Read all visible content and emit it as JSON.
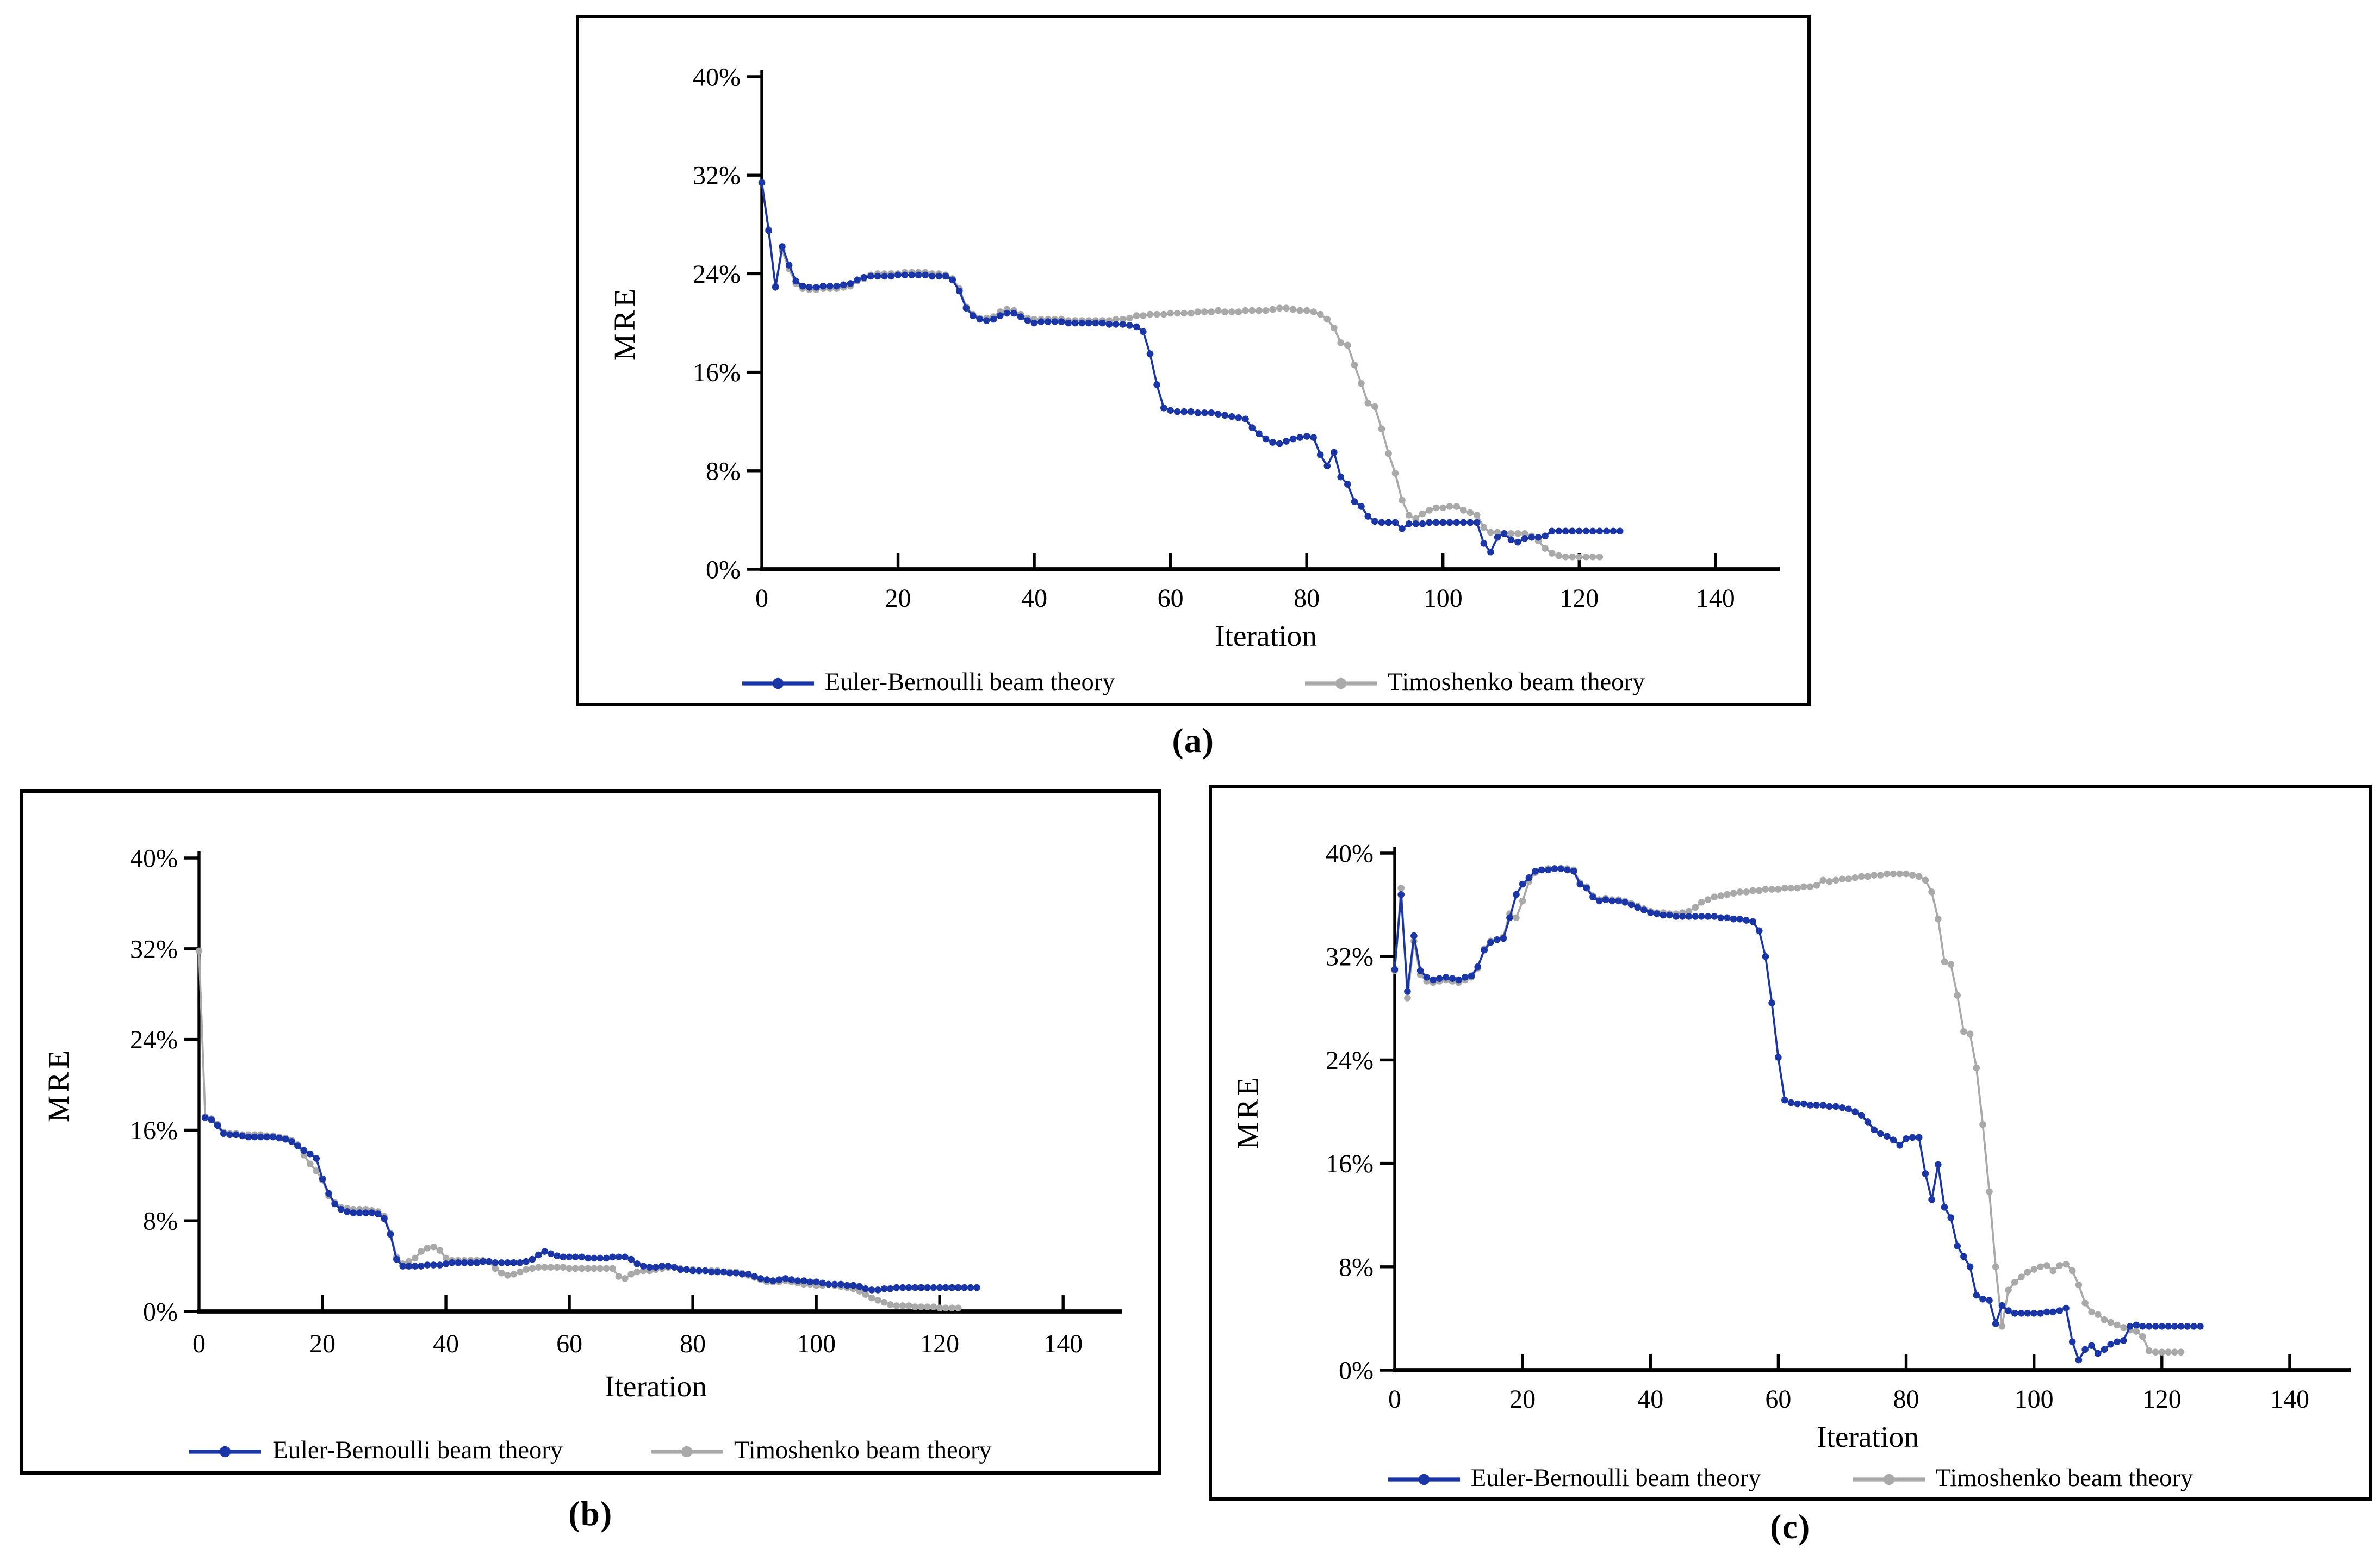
{
  "figure": {
    "type": "three-panel line chart figure",
    "background": "#ffffff",
    "axis_color": "#000000"
  },
  "chart_data": [
    {
      "id": "a",
      "type": "line",
      "caption": "(a)",
      "xlabel": "Iteration",
      "ylabel": "MRE",
      "xlim": [
        0,
        148
      ],
      "ylim": [
        0,
        40
      ],
      "grid": false,
      "legend_position": "bottom",
      "xtick_values": [
        0,
        20,
        40,
        60,
        80,
        100,
        120,
        140
      ],
      "xtick_labels": [
        "0",
        "20",
        "40",
        "60",
        "80",
        "100",
        "120",
        "140"
      ],
      "ytick_values": [
        0,
        8,
        16,
        24,
        32,
        40
      ],
      "ytick_labels": [
        "0%",
        "8%",
        "16%",
        "24%",
        "32%",
        "40%"
      ],
      "x_start": 0,
      "x_step": 1,
      "series": [
        {
          "name": "Euler-Bernoulli beam theory",
          "color": "#1a35a5",
          "marker": "circle",
          "values": [
            31.4,
            27.5,
            22.9,
            26.2,
            24.7,
            23.4,
            23.0,
            22.9,
            22.9,
            23.0,
            23.0,
            23.0,
            23.1,
            23.2,
            23.5,
            23.7,
            23.8,
            23.8,
            23.8,
            23.8,
            23.9,
            23.9,
            23.9,
            23.9,
            23.9,
            23.8,
            23.8,
            23.8,
            23.5,
            22.6,
            21.2,
            20.6,
            20.3,
            20.2,
            20.3,
            20.6,
            20.8,
            20.8,
            20.5,
            20.2,
            20.0,
            20.1,
            20.1,
            20.1,
            20.1,
            20.0,
            20.0,
            20.0,
            20.0,
            20.0,
            20.0,
            19.9,
            19.9,
            19.9,
            19.8,
            19.7,
            19.3,
            17.5,
            15.0,
            13.1,
            12.9,
            12.8,
            12.8,
            12.8,
            12.7,
            12.7,
            12.7,
            12.6,
            12.5,
            12.4,
            12.3,
            12.2,
            11.5,
            11.0,
            10.6,
            10.3,
            10.2,
            10.4,
            10.6,
            10.7,
            10.8,
            10.7,
            9.3,
            8.4,
            9.5,
            7.5,
            6.9,
            5.5,
            5.1,
            4.3,
            3.9,
            3.8,
            3.8,
            3.8,
            3.3,
            3.7,
            3.7,
            3.7,
            3.8,
            3.8,
            3.8,
            3.8,
            3.8,
            3.8,
            3.8,
            3.8,
            2.1,
            1.4,
            2.6,
            2.9,
            2.4,
            2.2,
            2.5,
            2.6,
            2.6,
            2.7,
            3.1,
            3.1,
            3.1,
            3.1,
            3.1,
            3.1,
            3.1,
            3.1,
            3.1,
            3.1,
            3.1
          ]
        },
        {
          "name": "Timoshenko beam theory",
          "color": "#a9a9a9",
          "marker": "circle",
          "values": [
            31.4,
            27.6,
            23.0,
            25.9,
            24.4,
            23.2,
            22.8,
            22.7,
            22.7,
            22.8,
            22.8,
            22.8,
            22.9,
            23.0,
            23.4,
            23.6,
            23.9,
            24.0,
            24.0,
            24.0,
            24.0,
            24.1,
            24.1,
            24.1,
            24.1,
            24.0,
            24.0,
            23.9,
            23.6,
            22.8,
            21.3,
            20.7,
            20.4,
            20.4,
            20.5,
            20.9,
            21.1,
            21.0,
            20.7,
            20.4,
            20.3,
            20.3,
            20.3,
            20.3,
            20.3,
            20.2,
            20.2,
            20.2,
            20.2,
            20.2,
            20.2,
            20.2,
            20.3,
            20.3,
            20.4,
            20.6,
            20.6,
            20.7,
            20.7,
            20.7,
            20.8,
            20.8,
            20.8,
            20.8,
            20.9,
            20.9,
            20.9,
            21.0,
            20.9,
            20.9,
            20.9,
            21.0,
            21.0,
            21.0,
            21.0,
            21.1,
            21.2,
            21.2,
            21.1,
            21.0,
            21.0,
            20.9,
            20.7,
            20.3,
            19.6,
            18.4,
            18.2,
            16.6,
            15.1,
            13.5,
            13.2,
            11.4,
            9.4,
            7.8,
            5.6,
            4.4,
            4.1,
            4.5,
            4.8,
            5.0,
            5.0,
            5.1,
            5.1,
            4.8,
            4.6,
            4.4,
            3.4,
            3.0,
            3.0,
            2.9,
            2.9,
            2.9,
            2.9,
            2.7,
            2.3,
            1.7,
            1.3,
            1.1,
            1.0,
            1.0,
            1.0,
            1.0,
            1.0,
            1.0
          ]
        }
      ]
    },
    {
      "id": "b",
      "type": "line",
      "caption": "(b)",
      "xlabel": "Iteration",
      "ylabel": "MRE",
      "xlim": [
        0,
        148
      ],
      "ylim": [
        0,
        40
      ],
      "grid": false,
      "legend_position": "bottom",
      "xtick_values": [
        0,
        20,
        40,
        60,
        80,
        100,
        120,
        140
      ],
      "xtick_labels": [
        "0",
        "20",
        "40",
        "60",
        "80",
        "100",
        "120",
        "140"
      ],
      "ytick_values": [
        0,
        8,
        16,
        24,
        32,
        40
      ],
      "ytick_labels": [
        "0%",
        "8%",
        "16%",
        "24%",
        "32%",
        "40%"
      ],
      "x_start": 0,
      "x_step": 1,
      "series": [
        {
          "name": "Euler-Bernoulli beam theory",
          "color": "#1a35a5",
          "marker": "circle",
          "values": [
            null,
            17.1,
            16.9,
            16.4,
            15.7,
            15.6,
            15.6,
            15.5,
            15.4,
            15.4,
            15.4,
            15.4,
            15.4,
            15.3,
            15.2,
            15.0,
            14.6,
            14.2,
            13.9,
            13.5,
            11.7,
            10.4,
            9.5,
            9.0,
            8.8,
            8.7,
            8.7,
            8.7,
            8.7,
            8.6,
            8.2,
            6.8,
            4.6,
            4.0,
            4.0,
            4.0,
            4.0,
            4.1,
            4.1,
            4.1,
            4.2,
            4.3,
            4.3,
            4.3,
            4.3,
            4.3,
            4.4,
            4.4,
            4.3,
            4.3,
            4.3,
            4.3,
            4.3,
            4.4,
            4.6,
            5.0,
            5.3,
            5.1,
            4.9,
            4.8,
            4.8,
            4.8,
            4.8,
            4.7,
            4.7,
            4.7,
            4.7,
            4.8,
            4.8,
            4.8,
            4.6,
            4.2,
            4.0,
            3.9,
            3.9,
            4.0,
            4.0,
            3.9,
            3.7,
            3.7,
            3.6,
            3.6,
            3.6,
            3.5,
            3.5,
            3.5,
            3.4,
            3.4,
            3.3,
            3.3,
            3.1,
            2.9,
            2.8,
            2.7,
            2.8,
            2.9,
            2.8,
            2.7,
            2.7,
            2.6,
            2.6,
            2.5,
            2.4,
            2.4,
            2.4,
            2.3,
            2.3,
            2.2,
            2.0,
            1.9,
            1.9,
            2.0,
            2.0,
            2.1,
            2.1,
            2.1,
            2.1,
            2.1,
            2.1,
            2.1,
            2.1,
            2.1,
            2.1,
            2.1,
            2.1,
            2.1,
            2.1
          ]
        },
        {
          "name": "Timoshenko beam theory",
          "color": "#a9a9a9",
          "marker": "circle",
          "values": [
            31.8,
            17.2,
            17.0,
            16.5,
            15.8,
            15.7,
            15.7,
            15.6,
            15.6,
            15.6,
            15.6,
            15.5,
            15.5,
            15.4,
            15.3,
            15.1,
            14.7,
            13.8,
            13.0,
            12.4,
            11.6,
            10.2,
            9.6,
            9.2,
            9.1,
            9.0,
            9.0,
            9.0,
            8.9,
            8.8,
            8.4,
            6.9,
            4.8,
            4.2,
            4.4,
            4.7,
            5.3,
            5.6,
            5.7,
            5.4,
            4.7,
            4.5,
            4.5,
            4.5,
            4.5,
            4.5,
            4.5,
            4.4,
            3.8,
            3.4,
            3.2,
            3.3,
            3.5,
            3.7,
            3.8,
            3.9,
            3.9,
            3.9,
            3.9,
            3.9,
            3.8,
            3.8,
            3.8,
            3.8,
            3.8,
            3.8,
            3.8,
            3.8,
            3.1,
            2.9,
            3.3,
            3.5,
            3.6,
            3.6,
            3.7,
            3.8,
            3.9,
            3.9,
            3.8,
            3.7,
            3.7,
            3.6,
            3.6,
            3.6,
            3.6,
            3.5,
            3.5,
            3.5,
            3.4,
            3.2,
            3.0,
            2.8,
            2.6,
            2.6,
            2.6,
            2.7,
            2.6,
            2.5,
            2.4,
            2.4,
            2.3,
            2.3,
            2.4,
            2.3,
            2.2,
            2.1,
            2.0,
            1.8,
            1.5,
            1.2,
            1.0,
            0.8,
            0.6,
            0.5,
            0.5,
            0.5,
            0.4,
            0.4,
            0.4,
            0.4,
            0.3,
            0.3,
            0.3,
            0.3
          ]
        }
      ]
    },
    {
      "id": "c",
      "type": "line",
      "caption": "(c)",
      "xlabel": "Iteration",
      "ylabel": "MRE",
      "xlim": [
        0,
        148
      ],
      "ylim": [
        0,
        40
      ],
      "grid": false,
      "legend_position": "bottom",
      "xtick_values": [
        0,
        20,
        40,
        60,
        80,
        100,
        120,
        140
      ],
      "xtick_labels": [
        "0",
        "20",
        "40",
        "60",
        "80",
        "100",
        "120",
        "140"
      ],
      "ytick_values": [
        0,
        8,
        16,
        24,
        32,
        40
      ],
      "ytick_labels": [
        "0%",
        "8%",
        "16%",
        "24%",
        "32%",
        "40%"
      ],
      "x_start": 0,
      "x_step": 1,
      "series": [
        {
          "name": "Euler-Bernoulli beam theory",
          "color": "#1a35a5",
          "marker": "circle",
          "values": [
            31.0,
            36.8,
            29.3,
            33.6,
            30.9,
            30.4,
            30.2,
            30.3,
            30.4,
            30.3,
            30.2,
            30.4,
            30.5,
            31.2,
            32.5,
            33.1,
            33.3,
            33.4,
            35.0,
            36.8,
            37.6,
            38.1,
            38.6,
            38.7,
            38.7,
            38.8,
            38.8,
            38.7,
            38.6,
            37.6,
            37.3,
            36.6,
            36.3,
            36.4,
            36.3,
            36.3,
            36.2,
            36.0,
            35.8,
            35.6,
            35.4,
            35.3,
            35.2,
            35.2,
            35.1,
            35.1,
            35.1,
            35.1,
            35.1,
            35.1,
            35.1,
            35.0,
            35.0,
            34.9,
            34.9,
            34.8,
            34.7,
            34.0,
            32.0,
            28.4,
            24.2,
            20.9,
            20.7,
            20.6,
            20.6,
            20.5,
            20.5,
            20.5,
            20.4,
            20.4,
            20.3,
            20.2,
            20.0,
            19.7,
            19.2,
            18.6,
            18.3,
            18.1,
            17.8,
            17.4,
            17.9,
            18.0,
            18.0,
            15.2,
            13.2,
            15.9,
            12.6,
            11.8,
            9.6,
            8.8,
            8.0,
            5.8,
            5.5,
            5.4,
            3.6,
            5.0,
            4.6,
            4.4,
            4.4,
            4.4,
            4.4,
            4.4,
            4.5,
            4.5,
            4.6,
            4.8,
            2.2,
            0.8,
            1.6,
            1.9,
            1.3,
            1.6,
            2.0,
            2.2,
            2.3,
            3.4,
            3.5,
            3.4,
            3.4,
            3.4,
            3.4,
            3.4,
            3.4,
            3.4,
            3.4,
            3.4,
            3.4
          ]
        },
        {
          "name": "Timoshenko beam theory",
          "color": "#a9a9a9",
          "marker": "circle",
          "values": [
            30.9,
            37.3,
            28.8,
            33.2,
            30.6,
            30.1,
            30.0,
            30.1,
            30.2,
            30.1,
            30.0,
            30.2,
            30.4,
            31.1,
            32.6,
            33.2,
            33.3,
            33.5,
            35.3,
            35.0,
            36.3,
            37.8,
            38.5,
            38.7,
            38.8,
            38.8,
            38.8,
            38.8,
            38.7,
            37.7,
            37.4,
            36.7,
            36.4,
            36.5,
            36.4,
            36.4,
            36.3,
            36.1,
            35.9,
            35.7,
            35.5,
            35.4,
            35.4,
            35.3,
            35.3,
            35.4,
            35.5,
            35.8,
            36.2,
            36.4,
            36.6,
            36.7,
            36.8,
            36.9,
            37.0,
            37.0,
            37.1,
            37.1,
            37.2,
            37.2,
            37.2,
            37.3,
            37.3,
            37.3,
            37.4,
            37.4,
            37.5,
            37.9,
            37.8,
            37.9,
            38.0,
            38.0,
            38.1,
            38.2,
            38.2,
            38.3,
            38.3,
            38.4,
            38.4,
            38.4,
            38.4,
            38.3,
            38.2,
            37.9,
            37.0,
            34.9,
            31.6,
            31.4,
            29.0,
            26.2,
            26.0,
            23.4,
            19.0,
            13.8,
            8.0,
            3.4,
            6.2,
            6.8,
            7.2,
            7.6,
            7.8,
            8.0,
            8.1,
            7.7,
            8.1,
            8.2,
            7.7,
            6.6,
            5.2,
            4.5,
            4.3,
            3.9,
            3.7,
            3.5,
            3.3,
            3.1,
            3.0,
            2.6,
            1.5,
            1.4,
            1.4,
            1.4,
            1.4,
            1.4
          ]
        }
      ]
    }
  ]
}
